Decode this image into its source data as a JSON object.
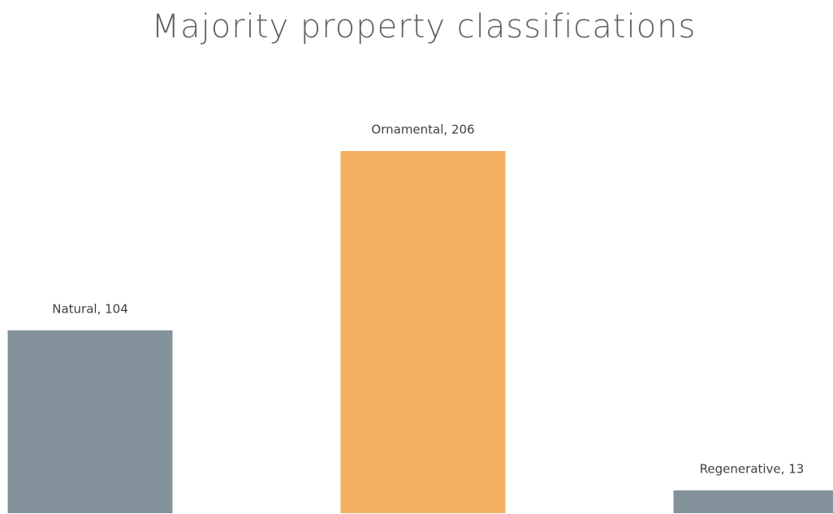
{
  "chart_data": {
    "type": "bar",
    "title": "Majority property classifications",
    "categories": [
      "Natural",
      "Ornamental",
      "Regenerative"
    ],
    "values": [
      104,
      206,
      13
    ],
    "value_labels": [
      "Natural, 104",
      "Ornamental, 206",
      "Regenerative, 13"
    ],
    "colors": [
      "#84939b",
      "#f6b062",
      "#84939b"
    ]
  }
}
